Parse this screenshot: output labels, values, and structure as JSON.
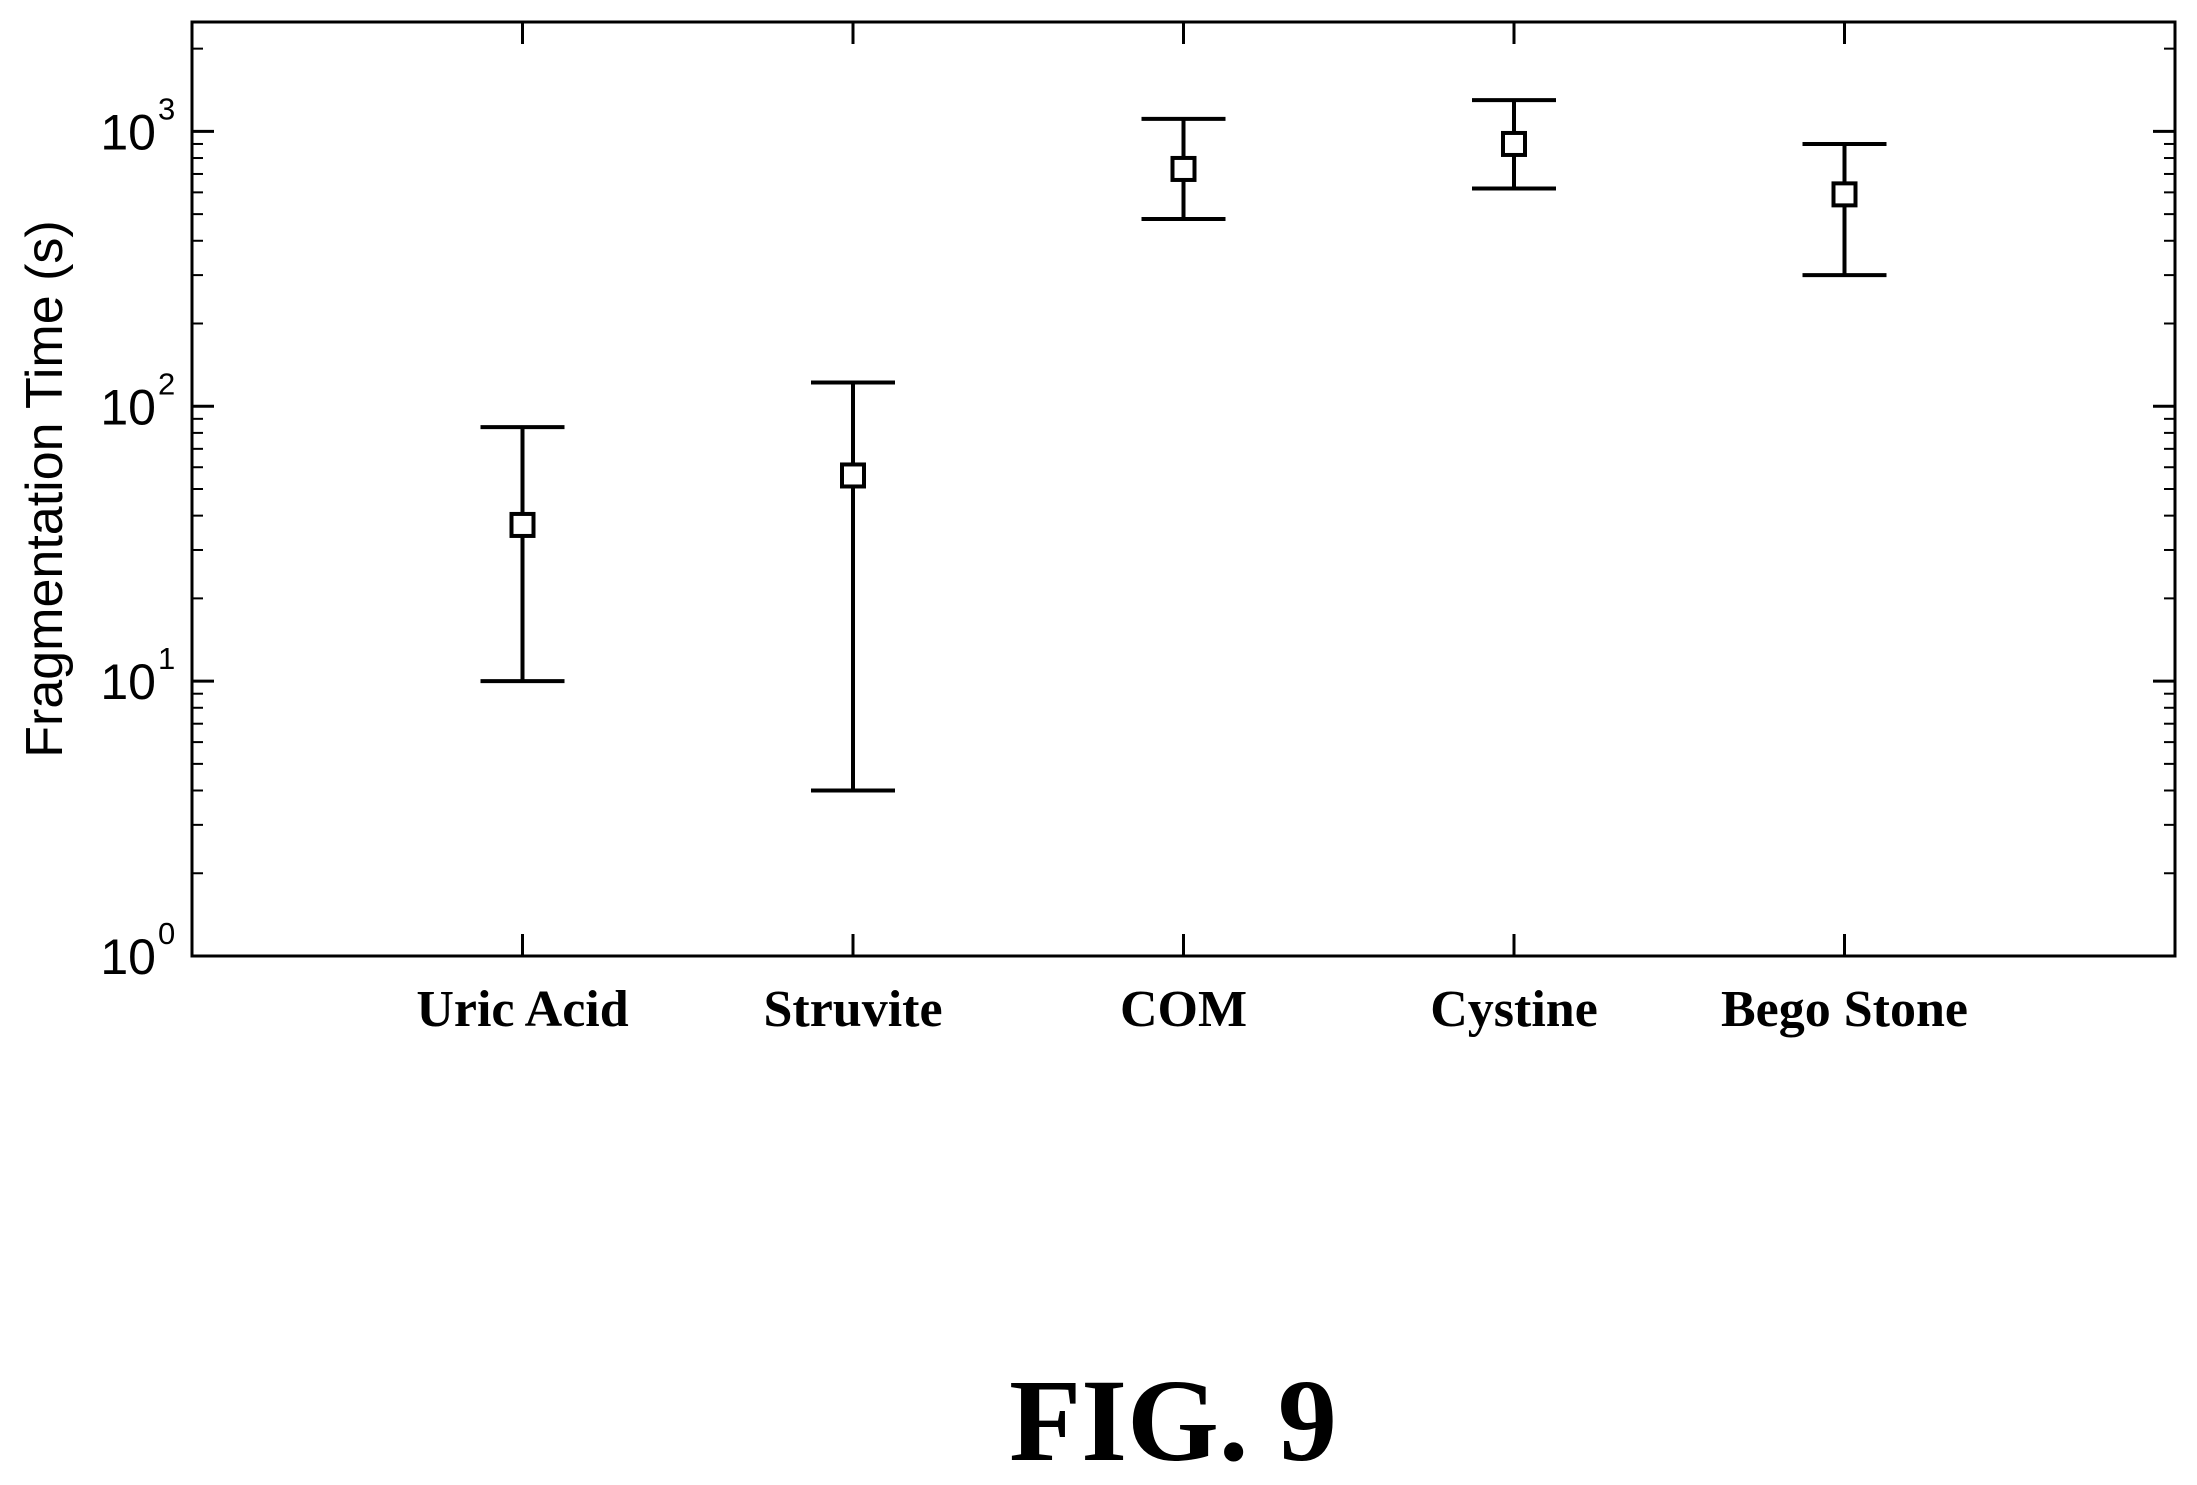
{
  "chart_data": {
    "type": "scatter",
    "title": "",
    "xlabel": "",
    "ylabel": "Fragmentation Time (s)",
    "yscale": "log",
    "ylim": [
      1,
      2500
    ],
    "grid": false,
    "legend": "none",
    "y_ticks": [
      {
        "base": "10",
        "exp": "0",
        "value": 1
      },
      {
        "base": "10",
        "exp": "1",
        "value": 10
      },
      {
        "base": "10",
        "exp": "2",
        "value": 100
      },
      {
        "base": "10",
        "exp": "3",
        "value": 1000
      }
    ],
    "categories": [
      "Uric Acid",
      "Struvite",
      "COM",
      "Cystine",
      "Bego Stone"
    ],
    "series": [
      {
        "marker": "square",
        "values": [
          37,
          56,
          730,
          900,
          590
        ],
        "error_low": [
          10,
          4,
          480,
          620,
          300
        ],
        "error_high": [
          84,
          122,
          1110,
          1300,
          900
        ]
      }
    ],
    "color": "#000000"
  },
  "figure": {
    "caption": "FIG. 9"
  }
}
